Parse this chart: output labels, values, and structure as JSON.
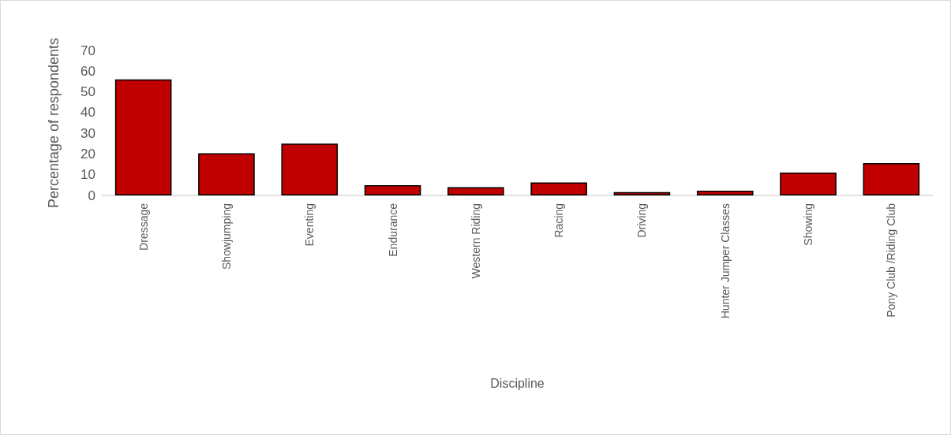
{
  "chart_data": {
    "type": "bar",
    "xlabel": "Discipline",
    "ylabel": "Percentage of respondents",
    "categories": [
      "Dressage",
      "Showjumping",
      "Eventing",
      "Endurance",
      "Western Riding",
      "Racing",
      "Driving",
      "Hunter Jumper Classes",
      "Showing",
      "Pony Club /Riding Club"
    ],
    "values": [
      56,
      20.4,
      25,
      4.9,
      4.0,
      6.3,
      1.6,
      2.3,
      11.0,
      15.6
    ],
    "color": "#c00000",
    "ylim": [
      0,
      70
    ],
    "yticks": [
      0,
      10,
      20,
      30,
      40,
      50,
      60,
      70
    ],
    "grid": false
  }
}
